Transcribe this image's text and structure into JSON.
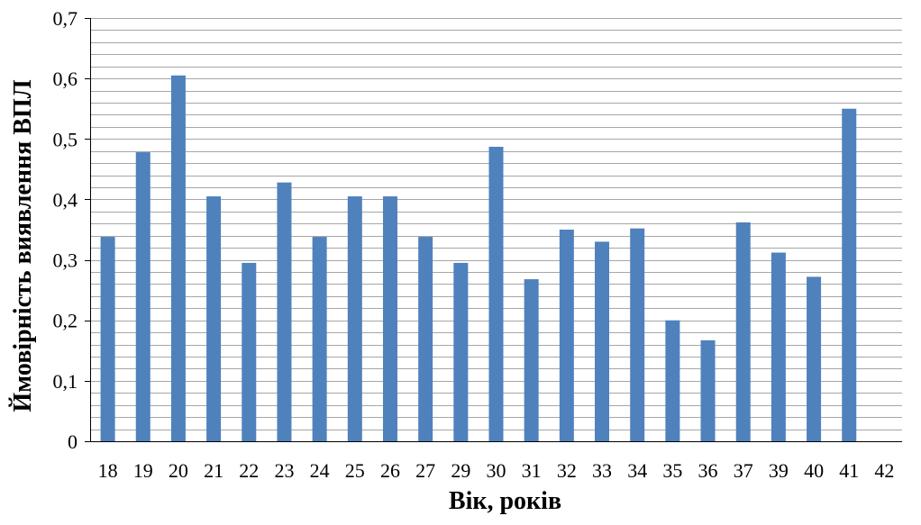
{
  "chart_data": {
    "type": "bar",
    "title": "",
    "xlabel": "Вік, років",
    "ylabel": "Ймовірність виявлення ВПЛ",
    "categories": [
      "18",
      "19",
      "20",
      "21",
      "22",
      "23",
      "24",
      "25",
      "26",
      "27",
      "29",
      "30",
      "31",
      "32",
      "33",
      "34",
      "35",
      "36",
      "37",
      "39",
      "40",
      "41",
      "42"
    ],
    "values": [
      0.338,
      0.478,
      0.605,
      0.405,
      0.295,
      0.428,
      0.338,
      0.405,
      0.405,
      0.338,
      0.295,
      0.487,
      0.268,
      0.35,
      0.33,
      0.352,
      0.2,
      0.167,
      0.362,
      0.312,
      0.272,
      0.55,
      0
    ],
    "ylim": [
      0,
      0.7
    ],
    "y_ticks": [
      "0",
      "0,1",
      "0,2",
      "0,3",
      "0,4",
      "0,5",
      "0,6",
      "0,7"
    ],
    "y_tick_values": [
      0,
      0.1,
      0.2,
      0.3,
      0.4,
      0.5,
      0.6,
      0.7
    ],
    "minor_grid_step": 0.02,
    "grid": true,
    "legend": "none",
    "bar_color": "#4F81BD",
    "grid_color": "#A6A6A6",
    "axis_color": "#000000"
  }
}
